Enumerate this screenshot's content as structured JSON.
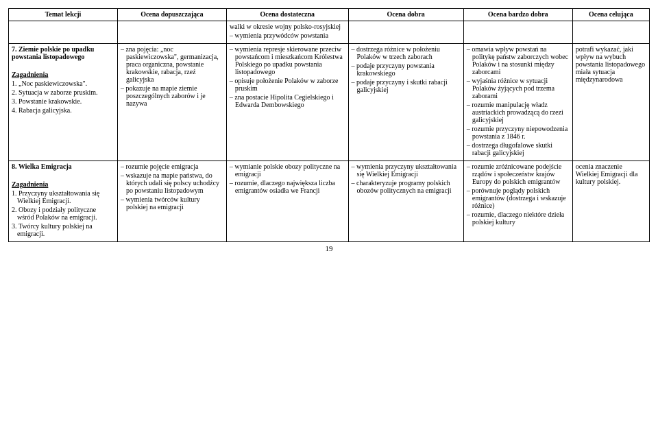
{
  "columns": [
    "Temat lekcji",
    "Ocena dopuszczająca",
    "Ocena dostateczna",
    "Ocena dobra",
    "Ocena bardzo dobra",
    "Ocena celująca"
  ],
  "col_widths": [
    "17%",
    "17%",
    "19%",
    "18%",
    "17%",
    "12%"
  ],
  "header_bg": "#ffffff",
  "rows": [
    {
      "topic": "",
      "c1": "",
      "c2": "walki w okresie wojny polsko-rosyjskiej\n– wymienia przywódców powstania",
      "c3": "",
      "c4": "",
      "c5": ""
    },
    {
      "topic": "7. Ziemie polskie po upadku powstania listopadowego",
      "subhead": "Zagadnienia",
      "topic_items": "1. „Noc paskiewiczowska\".\n2. Sytuacja w zaborze pruskim.\n3. Powstanie krakowskie.\n4. Rabacja galicyjska.",
      "c1": "– zna pojęcia: „noc paskiewiczowska\", germanizacja, praca organiczna, powstanie krakowskie, rabacja, rzeź galicyjska\n– pokazuje na mapie ziemie poszczególnych zaborów i je nazywa",
      "c2": "– wymienia represje skierowane przeciw powstańcom i mieszkańcom Królestwa Polskiego po upadku powstania listopadowego\n– opisuje położenie Polaków w zaborze pruskim\n– zna postacie Hipolita Cegielskiego i Edwarda Dembowskiego",
      "c3": "– dostrzega różnice w położeniu Polaków w trzech zaborach\n– podaje przyczyny powstania krakowskiego\n– podaje przyczyny i skutki rabacji galicyjskiej",
      "c4": "– omawia wpływ powstań na politykę państw zaborczych wobec Polaków i na stosunki między zaborcami\n– wyjaśnia różnice w sytuacji Polaków żyjących pod trzema zaborami\n– rozumie manipulację władz austriackich prowadzącą do rzezi galicyjskiej\n– rozumie przyczyny niepowodzenia powstania z 1846 r.\n– dostrzega długofalowe skutki rabacji galicyjskiej",
      "c5": "potrafi wykazać, jaki wpływ na wybuch powstania listopadowego miała sytuacja międzynarodowa"
    },
    {
      "topic": "8. Wielka Emigracja",
      "subhead": "Zagadnienia",
      "topic_items": "1. Przyczyny ukształtowania się Wielkiej Emigracji.\n2. Obozy i podziały polityczne wśród Polaków na emigracji.\n3. Twórcy kultury polskiej na emigracji.",
      "c1": "– rozumie pojęcie emigracja\n– wskazuje na mapie państwa, do których udali się polscy uchodźcy po powstaniu listopadowym\n– wymienia twórców kultury polskiej na emigracji",
      "c2": "– wymianie polskie obozy polityczne na emigracji\n– rozumie, dlaczego największa liczba emigrantów osiadła we Francji",
      "c3": "– wymienia przyczyny ukształtowania się Wielkiej Emigracji\n– charakteryzuje programy polskich obozów politycznych na emigracji",
      "c4": "– rozumie zróżnicowane podejście rządów i społeczeństw krajów Europy do polskich emigrantów\n– porównuje poglądy polskich emigrantów (dostrzega i wskazuje różnice)\n– rozumie, dlaczego niektóre dzieła polskiej kultury",
      "c5": "ocenia znaczenie Wielkiej Emigracji dla kultury polskiej."
    }
  ],
  "page_number": "19"
}
